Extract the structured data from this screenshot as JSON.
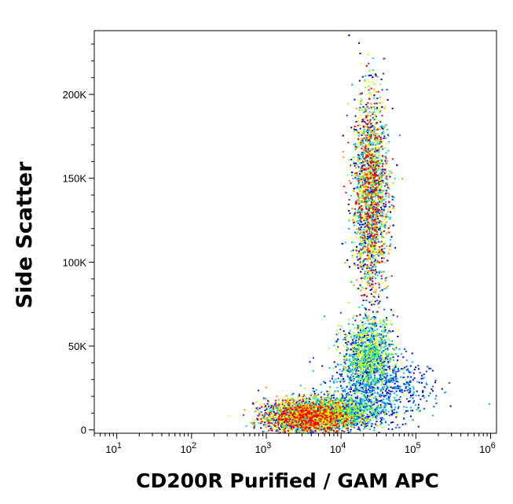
{
  "chart_data": {
    "type": "scatter",
    "style": "flow-cytometry-density",
    "xlabel": "CD200R Purified / GAM APC",
    "ylabel": "Side Scatter",
    "x_scale": "log",
    "x_range": [
      5,
      1200000
    ],
    "y_range": [
      -2000,
      238000
    ],
    "x_ticks": [
      {
        "value": 10,
        "base": "10",
        "exp": "1"
      },
      {
        "value": 100,
        "base": "10",
        "exp": "2"
      },
      {
        "value": 1000,
        "base": "10",
        "exp": "3"
      },
      {
        "value": 10000,
        "base": "10",
        "exp": "4"
      },
      {
        "value": 100000,
        "base": "10",
        "exp": "5"
      },
      {
        "value": 1000000,
        "base": "10",
        "exp": "6"
      }
    ],
    "y_ticks": [
      {
        "value": 0,
        "label": "0"
      },
      {
        "value": 50000,
        "label": "50K"
      },
      {
        "value": 100000,
        "label": "100K"
      },
      {
        "value": 150000,
        "label": "150K"
      },
      {
        "value": 200000,
        "label": "200K"
      }
    ],
    "populations": [
      {
        "x_center": 3500,
        "y_center": 8000,
        "x_spread_log10": 0.28,
        "y_spread": 5000,
        "density": "high"
      },
      {
        "x_center": 9000,
        "y_center": 11000,
        "x_spread_log10": 0.3,
        "y_spread": 5000,
        "density": "medium"
      },
      {
        "x_center": 22000,
        "y_center": 45000,
        "x_spread_log10": 0.17,
        "y_spread": 11000,
        "density": "medium"
      },
      {
        "x_center": 24000,
        "y_center": 140000,
        "x_spread_log10": 0.12,
        "y_spread": 30000,
        "density": "high"
      },
      {
        "x_center": 30000,
        "y_center": 25000,
        "x_spread_log10": 0.35,
        "y_spread": 10000,
        "density": "low"
      }
    ],
    "color_scale": [
      "#0000c8",
      "#0050ff",
      "#00b4ff",
      "#00e6a0",
      "#8cff32",
      "#ffff00",
      "#ff9600",
      "#ff0000"
    ],
    "grid": false,
    "legend": "none"
  }
}
